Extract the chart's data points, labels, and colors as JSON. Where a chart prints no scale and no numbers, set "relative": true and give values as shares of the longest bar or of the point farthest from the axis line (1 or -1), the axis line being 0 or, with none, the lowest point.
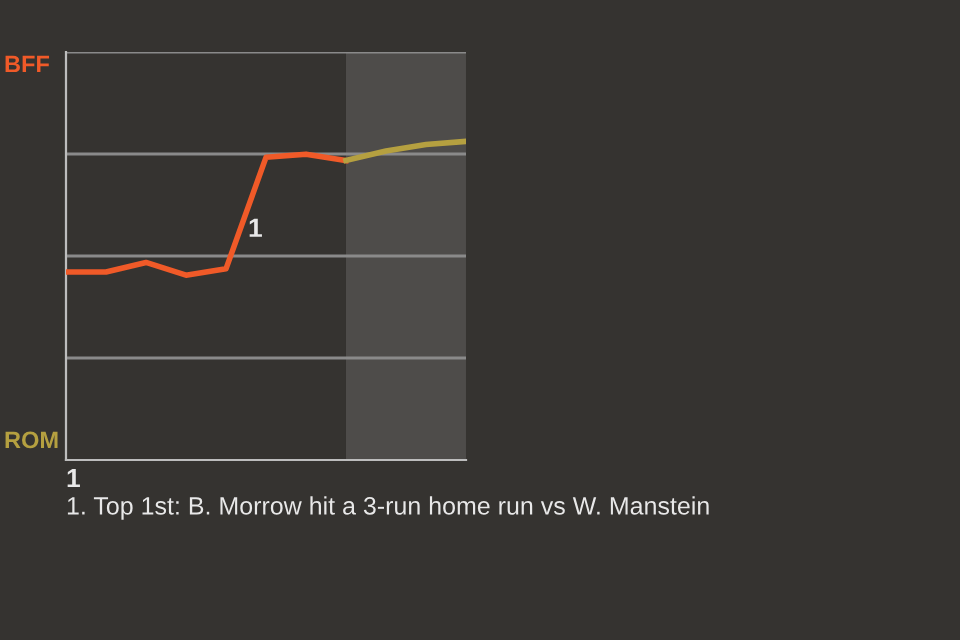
{
  "chart_data": {
    "type": "line",
    "relative": true,
    "categories": [
      null,
      null,
      null,
      null,
      null,
      null,
      null,
      null,
      null,
      null,
      null
    ],
    "series": [
      {
        "color": "#f05a28",
        "values": [
          0.59,
          0.59,
          0.62,
          0.58,
          0.6,
          0.95,
          0.96,
          0.94,
          null,
          null,
          null
        ]
      },
      {
        "color": "#b5a040",
        "values": [
          null,
          null,
          null,
          null,
          null,
          null,
          null,
          0.94,
          0.97,
          0.99,
          1
        ]
      }
    ],
    "grid": "y",
    "annotations": [
      "BFF",
      "ROM",
      "1",
      "1",
      "1. Top 1st: B. Morrow hit a 3-run home run vs W. Manstein"
    ]
  }
}
